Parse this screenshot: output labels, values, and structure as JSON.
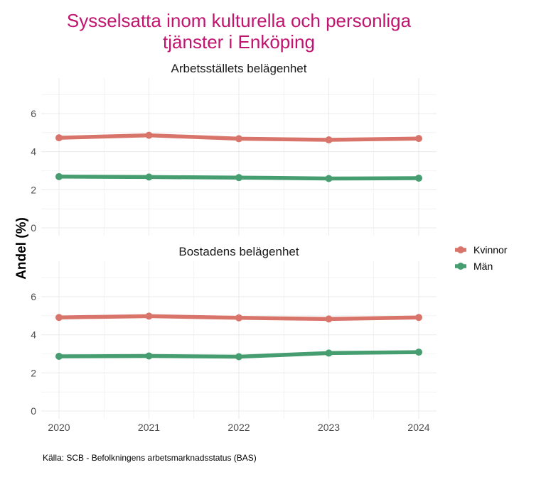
{
  "chart_data": {
    "type": "line",
    "title_lines": [
      "Sysselsatta inom kulturella och personliga",
      "tjänster i Enköping"
    ],
    "ylabel": "Andel (%)",
    "caption": "Källa: SCB - Befolkningens arbetsmarknadsstatus (BAS)",
    "x": [
      "2020",
      "2021",
      "2022",
      "2023",
      "2024"
    ],
    "ylim": [
      0,
      7.5
    ],
    "y_ticks": [
      "0",
      "2",
      "4",
      "6"
    ],
    "grid": true,
    "legend_position": "right",
    "colors": {
      "title": "#c0146e",
      "Kvinnor": "#d9746a",
      "Män": "#459d70",
      "grid": "#ebebeb"
    },
    "legend": [
      "Kvinnor",
      "Män"
    ],
    "panels": [
      {
        "title": "Arbetsställets belägenhet",
        "series": [
          {
            "name": "Kvinnor",
            "values": [
              4.73,
              4.86,
              4.68,
              4.62,
              4.69
            ]
          },
          {
            "name": "Män",
            "values": [
              2.69,
              2.67,
              2.64,
              2.59,
              2.61
            ]
          }
        ]
      },
      {
        "title": "Bostadens belägenhet",
        "series": [
          {
            "name": "Kvinnor",
            "values": [
              4.91,
              4.98,
              4.89,
              4.83,
              4.91
            ]
          },
          {
            "name": "Män",
            "values": [
              2.87,
              2.89,
              2.85,
              3.04,
              3.09
            ]
          }
        ]
      }
    ]
  }
}
